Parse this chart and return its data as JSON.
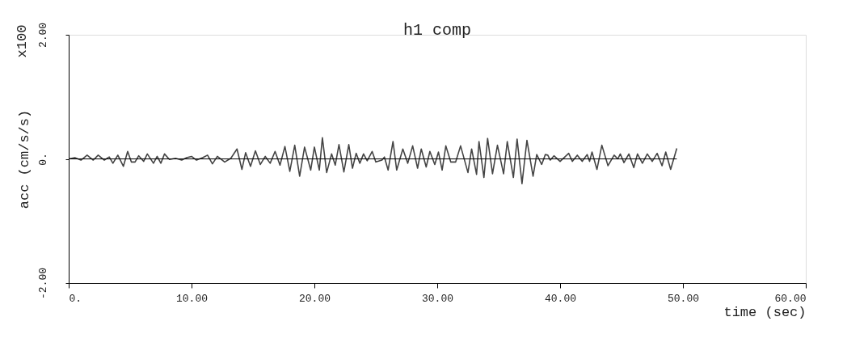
{
  "chart_data": {
    "type": "line",
    "title": "h1 comp",
    "xlabel": "time (sec)",
    "ylabel": "acc (cm/s/s)",
    "annotations": [
      "x100"
    ],
    "x": [
      0,
      0.5,
      1.0,
      1.5,
      2.0,
      2.4,
      2.9,
      3.3,
      3.6,
      4.0,
      4.45,
      4.8,
      5.1,
      5.4,
      5.7,
      6.1,
      6.4,
      6.9,
      7.2,
      7.5,
      7.8,
      8.2,
      8.7,
      9.2,
      9.6,
      10.0,
      10.4,
      10.9,
      11.3,
      11.7,
      12.1,
      12.7,
      13.2,
      13.7,
      14.1,
      14.4,
      14.8,
      15.2,
      15.6,
      16.0,
      16.4,
      16.8,
      17.2,
      17.6,
      18.0,
      18.4,
      18.8,
      19.2,
      19.7,
      20.0,
      20.4,
      20.65,
      21.0,
      21.4,
      21.7,
      22.0,
      22.4,
      22.8,
      23.1,
      23.4,
      23.7,
      24.0,
      24.3,
      24.7,
      25.0,
      25.5,
      25.7,
      26.0,
      26.4,
      26.7,
      27.2,
      27.6,
      28.0,
      28.4,
      28.7,
      29.1,
      29.4,
      29.8,
      30.1,
      30.4,
      30.7,
      31.1,
      31.5,
      31.9,
      32.5,
      32.8,
      33.2,
      33.4,
      33.8,
      34.1,
      34.5,
      34.9,
      35.4,
      35.7,
      36.2,
      36.5,
      36.9,
      37.3,
      37.8,
      38.1,
      38.5,
      38.8,
      39.0,
      39.2,
      39.5,
      40.0,
      40.7,
      41.0,
      41.4,
      41.8,
      42.2,
      42.4,
      42.6,
      43.0,
      43.4,
      43.9,
      44.4,
      44.7,
      44.9,
      45.2,
      45.6,
      46.0,
      46.3,
      46.7,
      47.1,
      47.5,
      47.9,
      48.3,
      48.6,
      49.0,
      49.5
    ],
    "series": [
      {
        "color": "#444444",
        "values": [
          0,
          0.02,
          -0.02,
          0.06,
          -0.02,
          0.06,
          -0.02,
          0.03,
          -0.07,
          0.06,
          -0.12,
          0.12,
          -0.05,
          -0.05,
          0.05,
          -0.04,
          0.08,
          -0.07,
          0.04,
          -0.07,
          0.08,
          -0.01,
          0.01,
          -0.02,
          0.02,
          0.04,
          -0.02,
          0.02,
          0.06,
          -0.08,
          0.04,
          -0.05,
          0.01,
          0.16,
          -0.17,
          0.1,
          -0.12,
          0.13,
          -0.09,
          0.04,
          -0.07,
          0.12,
          -0.1,
          0.2,
          -0.2,
          0.22,
          -0.28,
          0.19,
          -0.18,
          0.19,
          -0.18,
          0.34,
          -0.22,
          0.08,
          -0.1,
          0.23,
          -0.21,
          0.23,
          -0.15,
          0.09,
          -0.07,
          0.08,
          -0.03,
          0.12,
          -0.05,
          -0.02,
          0.03,
          -0.18,
          0.28,
          -0.18,
          0.16,
          -0.07,
          0.21,
          -0.15,
          0.16,
          -0.13,
          0.12,
          -0.09,
          0.11,
          -0.18,
          0.21,
          -0.05,
          -0.05,
          0.21,
          -0.22,
          0.16,
          -0.25,
          0.28,
          -0.3,
          0.33,
          -0.24,
          0.22,
          -0.24,
          0.28,
          -0.3,
          0.32,
          -0.4,
          0.3,
          -0.28,
          0.07,
          -0.09,
          0.07,
          0.06,
          -0.02,
          0.05,
          -0.04,
          0.09,
          -0.04,
          0.06,
          -0.04,
          0.07,
          -0.04,
          0.11,
          -0.17,
          0.22,
          -0.11,
          0.06,
          0.0,
          0.08,
          -0.06,
          0.08,
          -0.14,
          0.08,
          -0.07,
          0.08,
          -0.04,
          0.09,
          -0.11,
          0.11,
          -0.17,
          0.17
        ]
      }
    ],
    "xlim": [
      0,
      60
    ],
    "ylim": [
      -2,
      2
    ],
    "xticks": [
      {
        "value": 0,
        "label": "0."
      },
      {
        "value": 10,
        "label": "10.00"
      },
      {
        "value": 20,
        "label": "20.00"
      },
      {
        "value": 30,
        "label": "30.00"
      },
      {
        "value": 40,
        "label": "40.00"
      },
      {
        "value": 50,
        "label": "50.00"
      },
      {
        "value": 60,
        "label": "60.00"
      }
    ],
    "yticks": [
      {
        "value": -2,
        "label": "-2.00"
      },
      {
        "value": 0,
        "label": "0."
      },
      {
        "value": 2,
        "label": "2.00"
      }
    ],
    "ref_lines": [
      {
        "axis": "y",
        "value": 0,
        "color": "#000000"
      }
    ],
    "grid": false,
    "marker": "none",
    "line_style": "solid"
  }
}
